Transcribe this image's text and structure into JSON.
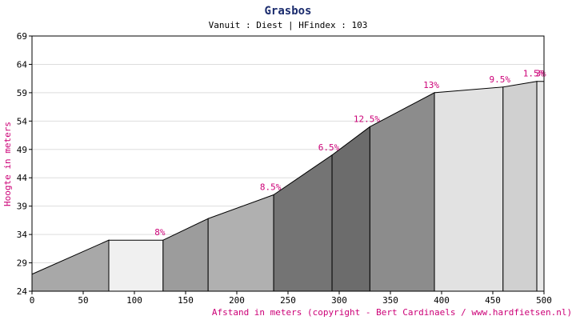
{
  "chart_data": {
    "type": "area",
    "title": "Grasbos",
    "subtitle": "Vanuit : Diest | HFindex : 103",
    "xlabel": "Afstand in meters (copyright - Bert Cardinaels / www.hardfietsen.nl)",
    "ylabel": "Hoogte in meters",
    "xlim": [
      0,
      500
    ],
    "ylim": [
      24,
      69
    ],
    "xticks": [
      0,
      50,
      100,
      150,
      200,
      250,
      300,
      350,
      400,
      450,
      500
    ],
    "yticks": [
      24,
      29,
      34,
      39,
      44,
      49,
      54,
      59,
      64,
      69
    ],
    "grid": true,
    "points": [
      {
        "x": 0,
        "y": 27
      },
      {
        "x": 75,
        "y": 33
      },
      {
        "x": 128,
        "y": 33
      },
      {
        "x": 172,
        "y": 36.8
      },
      {
        "x": 236,
        "y": 41
      },
      {
        "x": 293,
        "y": 48
      },
      {
        "x": 330,
        "y": 53
      },
      {
        "x": 393,
        "y": 59
      },
      {
        "x": 460,
        "y": 60
      },
      {
        "x": 493,
        "y": 61
      },
      {
        "x": 500,
        "y": 61
      }
    ],
    "segments": [
      {
        "label": "",
        "color": "#a8a8a8"
      },
      {
        "label": "8%",
        "color": "#f0f0f0"
      },
      {
        "label": "",
        "color": "#9c9c9c"
      },
      {
        "label": "8.5%",
        "color": "#b0b0b0"
      },
      {
        "label": "6.5%",
        "color": "#747474"
      },
      {
        "label": "12.5%",
        "color": "#6c6c6c"
      },
      {
        "label": "13%",
        "color": "#8c8c8c"
      },
      {
        "label": "9.5%",
        "color": "#e2e2e2"
      },
      {
        "label": "1.5%",
        "color": "#d0d0d0"
      },
      {
        "label": "3%",
        "color": "#e8e8e8"
      }
    ],
    "colors": {
      "title": "#1a2b6d",
      "labels": "#cc0077",
      "grid": "#dddddd",
      "outline": "#000000"
    }
  }
}
